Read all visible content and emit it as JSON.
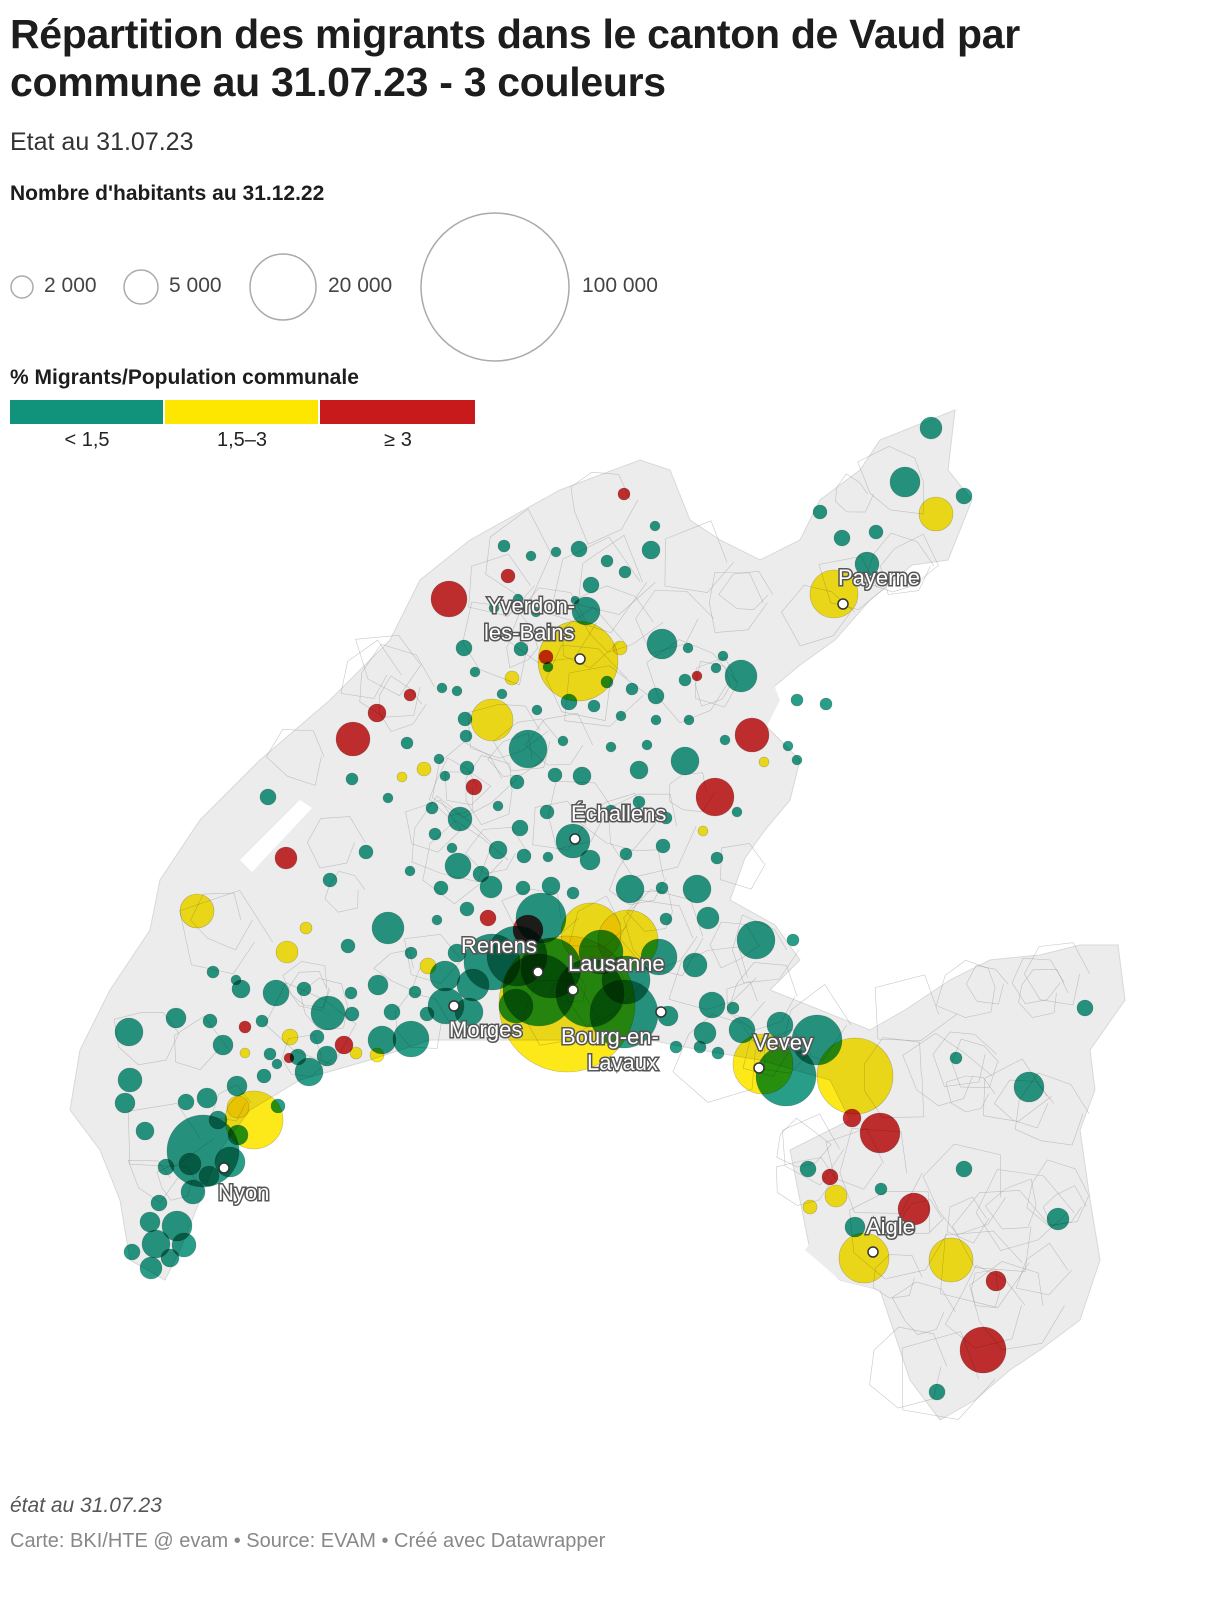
{
  "title": "Répartition des migrants dans le canton de Vaud par commune au 31.07.23 - 3 couleurs",
  "subtitle": "Etat au 31.07.23",
  "size_legend": {
    "title": "Nombre d'habitants au 31.12.22",
    "entries": [
      {
        "value": 2000,
        "label": "2 000"
      },
      {
        "value": 5000,
        "label": "5 000"
      },
      {
        "value": 20000,
        "label": "20 000"
      },
      {
        "value": 100000,
        "label": "100 000"
      }
    ]
  },
  "color_legend": {
    "title": "% Migrants/Population communale",
    "bins": [
      {
        "label": "< 1,5",
        "color": "#11927a"
      },
      {
        "label": "1,5–3",
        "color": "#fde600"
      },
      {
        "label": "≥ 3",
        "color": "#c81a1a"
      }
    ]
  },
  "colors": {
    "map_fill": "#ececec",
    "map_border": "#9a9a9a",
    "low": "#11927a",
    "mid": "#fde600",
    "high": "#c81a1a"
  },
  "cities": [
    "Payerne",
    "Yverdon-les-Bains",
    "Échallens",
    "Renens",
    "Lausanne",
    "Morges",
    "Bourg-en-Lavaux",
    "Vevey",
    "Nyon",
    "Aigle"
  ],
  "note": "état au 31.07.23",
  "source": "Carte: BKI/HTE @ evam • Source: EVAM • Créé avec Datawrapper"
}
